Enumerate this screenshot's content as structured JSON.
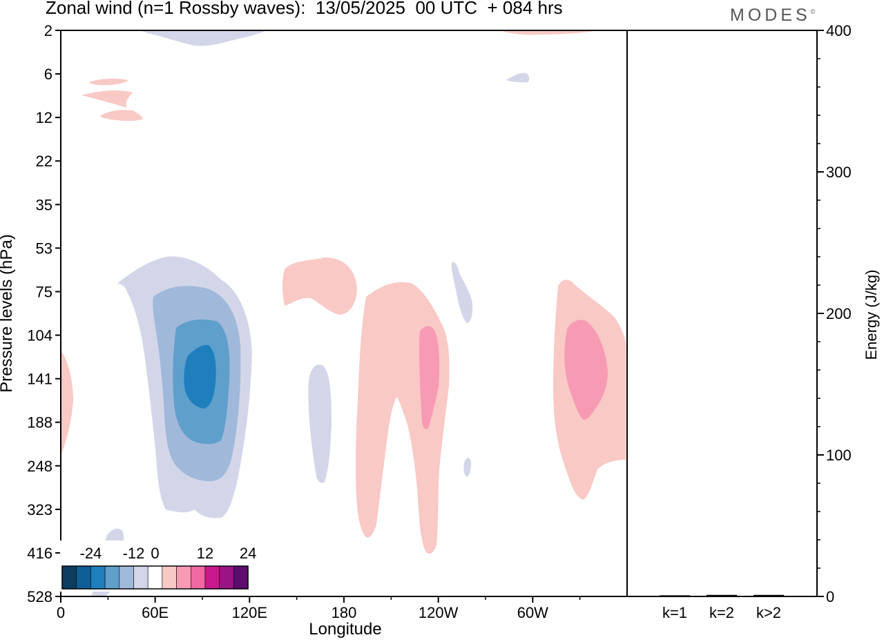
{
  "header": {
    "title": "Zonal wind (n=1 Rossby waves):  13/05/2025  00 UTC  + 084 hrs",
    "brand": "MODES",
    "brand_mark": "©"
  },
  "chart_data": [
    {
      "type": "heatmap",
      "title": "Zonal wind (n=1 Rossby waves):  13/05/2025  00 UTC  + 084 hrs",
      "xlabel": "Longitude",
      "ylabel": "Pressure levels (hPa)",
      "x_ticks": [
        "0",
        "60E",
        "120E",
        "180",
        "120W",
        "60W"
      ],
      "x_range_deg_east": [
        0,
        360
      ],
      "y_ticks": [
        "2",
        "6",
        "12",
        "22",
        "35",
        "53",
        "75",
        "104",
        "141",
        "188",
        "248",
        "323",
        "416",
        "528"
      ],
      "colorbar": {
        "tick_labels": [
          "-24",
          "-12",
          "0",
          "12",
          "24"
        ],
        "levels": [
          -28,
          -24,
          -20,
          -16,
          -12,
          -8,
          -4,
          4,
          8,
          12,
          16,
          20,
          24,
          28
        ],
        "colors": [
          "#0b3d5e",
          "#0f5f96",
          "#1f7fbd",
          "#5f9fcb",
          "#a0b8da",
          "#d3d6e8",
          "#ffffff",
          "#f9c9c5",
          "#f79bb4",
          "#ef6aa0",
          "#c8198c",
          "#9a1488",
          "#5e0c6e"
        ]
      },
      "features": [
        {
          "sign": "negative",
          "center_lon_deg": 90,
          "center_level_hPa": 141,
          "min_value": -20
        },
        {
          "sign": "positive",
          "center_lon_deg": 233,
          "center_level_hPa": 141,
          "max_value": 8
        },
        {
          "sign": "positive",
          "center_lon_deg": 333,
          "center_level_hPa": 141,
          "max_value": 8
        },
        {
          "sign": "positive",
          "center_lon_deg": 160,
          "center_level_hPa": 75,
          "max_value": 4
        },
        {
          "sign": "negative",
          "center_lon_deg": 165,
          "center_level_hPa": 188,
          "min_value": -4
        }
      ]
    },
    {
      "type": "bar",
      "ylabel": "Energy (J/kg)",
      "categories": [
        "k=1",
        "k=2",
        "k>2"
      ],
      "values": [
        0.3,
        0.6,
        0.6
      ],
      "ylim": [
        0,
        400
      ],
      "y_ticks": [
        "0",
        "100",
        "200",
        "300",
        "400"
      ]
    }
  ],
  "colors": {
    "positive_shade": "#f9c9c5",
    "negative_shade": "#d3d6e8"
  }
}
